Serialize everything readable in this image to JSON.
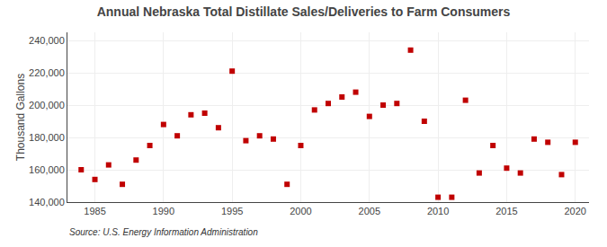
{
  "chart_data": {
    "type": "scatter",
    "title": "Annual Nebraska Total Distillate Sales/Deliveries to Farm Consumers",
    "ylabel": "Thousand Gallons",
    "annotations": [
      "Source: U.S. Energy Information Administration"
    ],
    "x": [
      1984,
      1985,
      1986,
      1987,
      1988,
      1989,
      1990,
      1991,
      1992,
      1993,
      1994,
      1995,
      1996,
      1997,
      1998,
      1999,
      2000,
      2001,
      2002,
      2003,
      2004,
      2005,
      2006,
      2007,
      2008,
      2009,
      2010,
      2011,
      2012,
      2013,
      2014,
      2015,
      2016,
      2017,
      2018,
      2019,
      2020
    ],
    "values": [
      160000,
      154000,
      163000,
      151000,
      166000,
      175000,
      188000,
      181000,
      194000,
      195000,
      186000,
      221000,
      178000,
      181000,
      179000,
      151000,
      175000,
      197000,
      201000,
      205000,
      208000,
      193000,
      200000,
      201000,
      234000,
      190000,
      143000,
      143000,
      203000,
      158000,
      175000,
      161000,
      158000,
      179000,
      177000,
      157000,
      177000
    ],
    "color": "#c00000",
    "marker": "square",
    "xlim": [
      1983,
      2021
    ],
    "xticks": [
      1985,
      1990,
      1995,
      2000,
      2005,
      2010,
      2015,
      2020
    ],
    "ylim": [
      140000,
      245000
    ],
    "yticks": [
      {
        "value": 140000,
        "label": "140,000"
      },
      {
        "value": 160000,
        "label": "160,000"
      },
      {
        "value": 180000,
        "label": "180,000"
      },
      {
        "value": 200000,
        "label": "200,000"
      },
      {
        "value": 220000,
        "label": "220,000"
      },
      {
        "value": 240000,
        "label": "240,000"
      }
    ],
    "grid": true
  }
}
